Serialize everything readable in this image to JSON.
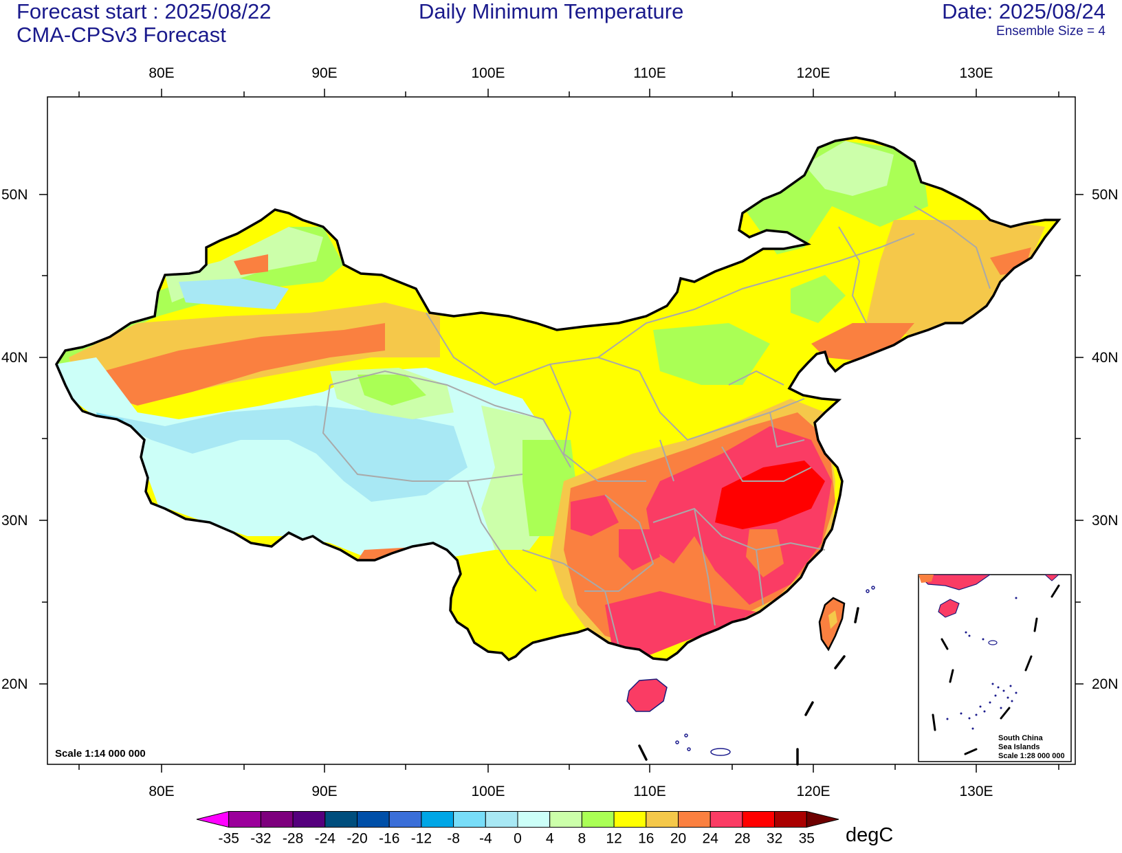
{
  "header": {
    "forecast_start": "Forecast start : 2025/08/22",
    "model": "CMA-CPSv3 Forecast",
    "title": "Daily Minimum Temperature",
    "date": "Date: 2025/08/24",
    "ensemble": "Ensemble Size = 4"
  },
  "axes": {
    "lon_labels": [
      "80E",
      "90E",
      "100E",
      "110E",
      "120E",
      "130E"
    ],
    "lat_labels": [
      "50N",
      "40N",
      "30N",
      "20N"
    ]
  },
  "scale_text": "Scale 1:14 000 000",
  "inset": {
    "lines": [
      "South China",
      "Sea Islands",
      "Scale 1:28 000 000"
    ]
  },
  "colorbar": {
    "unit": "degC",
    "labels": [
      "-35",
      "-32",
      "-28",
      "-24",
      "-20",
      "-16",
      "-12",
      "-8",
      "-4",
      "0",
      "4",
      "8",
      "12",
      "16",
      "20",
      "24",
      "28",
      "32",
      "35"
    ],
    "colors": [
      "#ff00ff",
      "#9b009b",
      "#7d007d",
      "#55007d",
      "#004e7d",
      "#004fa8",
      "#3a6ed8",
      "#00a6e6",
      "#78ddf8",
      "#a8e8f4",
      "#ccfff8",
      "#ccffaa",
      "#aaff55",
      "#ffff00",
      "#f5c84a",
      "#fa8040",
      "#fa3c64",
      "#ff0000",
      "#aa0000",
      "#6e0000"
    ]
  }
}
